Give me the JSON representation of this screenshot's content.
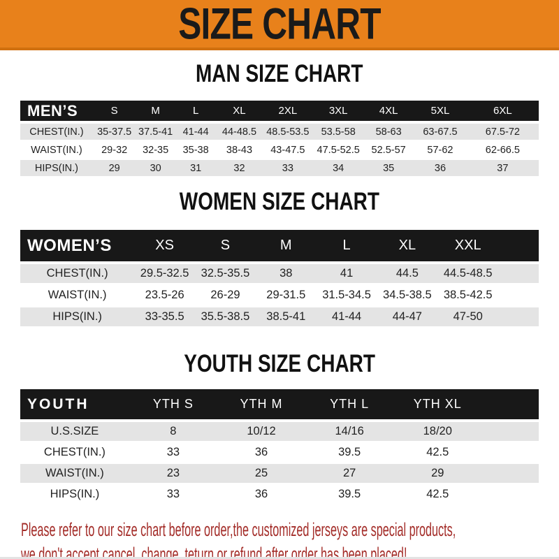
{
  "banner": {
    "title": "SIZE CHART",
    "bg_color": "#E8811B",
    "border_color": "#D0700F",
    "text_color": "#1A1A1A"
  },
  "colors": {
    "header_bar": "#181818",
    "row_stripe": "#E4E4E4",
    "row_plain": "#FFFFFF",
    "cell_text": "#222222"
  },
  "chart_data": [
    {
      "type": "table",
      "title": "MAN SIZE CHART",
      "header_label": "MEN’S",
      "columns": [
        "S",
        "M",
        "L",
        "XL",
        "2XL",
        "3XL",
        "4XL",
        "5XL",
        "6XL"
      ],
      "rows": [
        {
          "label": "CHEST(IN.)",
          "values": [
            "35-37.5",
            "37.5-41",
            "41-44",
            "44-48.5",
            "48.5-53.5",
            "53.5-58",
            "58-63",
            "63-67.5",
            "67.5-72"
          ]
        },
        {
          "label": "WAIST(IN.)",
          "values": [
            "29-32",
            "32-35",
            "35-38",
            "38-43",
            "43-47.5",
            "47.5-52.5",
            "52.5-57",
            "57-62",
            "62-66.5"
          ]
        },
        {
          "label": "HIPS(IN.)",
          "values": [
            "29",
            "30",
            "31",
            "32",
            "33",
            "34",
            "35",
            "36",
            "37"
          ]
        }
      ]
    },
    {
      "type": "table",
      "title": "WOMEN SIZE CHART",
      "header_label": "WOMEN’S",
      "columns": [
        "XS",
        "S",
        "M",
        "L",
        "XL",
        "XXL"
      ],
      "rows": [
        {
          "label": "CHEST(IN.)",
          "values": [
            "29.5-32.5",
            "32.5-35.5",
            "38",
            "41",
            "44.5",
            "44.5-48.5"
          ]
        },
        {
          "label": "WAIST(IN.)",
          "values": [
            "23.5-26",
            "26-29",
            "29-31.5",
            "31.5-34.5",
            "34.5-38.5",
            "38.5-42.5"
          ]
        },
        {
          "label": "HIPS(IN.)",
          "values": [
            "33-35.5",
            "35.5-38.5",
            "38.5-41",
            "41-44",
            "44-47",
            "47-50"
          ]
        }
      ]
    },
    {
      "type": "table",
      "title": "YOUTH SIZE CHART",
      "header_label": "YOUTH",
      "columns": [
        "YTH S",
        "YTH M",
        "YTH L",
        "YTH XL"
      ],
      "rows": [
        {
          "label": "U.S.SIZE",
          "values": [
            "8",
            "10/12",
            "14/16",
            "18/20"
          ]
        },
        {
          "label": "CHEST(IN.)",
          "values": [
            "33",
            "36",
            "39.5",
            "42.5"
          ]
        },
        {
          "label": "WAIST(IN.)",
          "values": [
            "23",
            "25",
            "27",
            "29"
          ]
        },
        {
          "label": "HIPS(IN.)",
          "values": [
            "33",
            "36",
            "39.5",
            "42.5"
          ]
        }
      ]
    }
  ],
  "footer": {
    "line1": "Please refer to our size chart before order,the customized jerseys are special products,",
    "line2": "we don't accept cancel, change, teturn or refund after order has been placed!",
    "text_color": "#A32C28"
  }
}
